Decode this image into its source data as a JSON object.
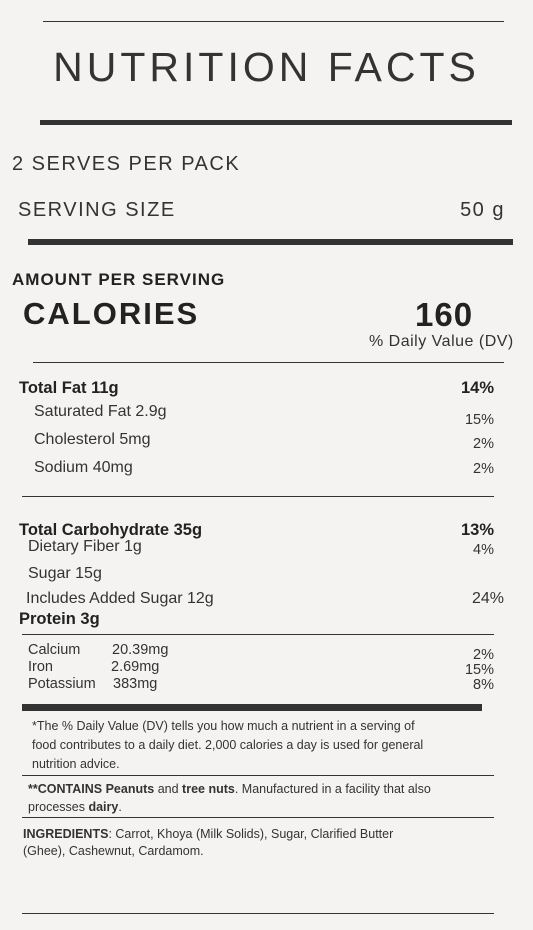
{
  "title": "NUTRITION FACTS",
  "serves_per_pack": "2 SERVES PER PACK",
  "serving_size": {
    "label": "SERVING SIZE",
    "value": "50 g"
  },
  "amount_per_serving": "AMOUNT PER SERVING",
  "calories": {
    "label": "CALORIES",
    "value": "160"
  },
  "dv_header": "% Daily Value (DV)",
  "fat": {
    "total": {
      "label": "Total Fat 11g",
      "dv": "14%"
    },
    "items": [
      {
        "label": "Saturated Fat 2.9g",
        "dv": "15%"
      },
      {
        "label": "Cholesterol 5mg",
        "dv": "2%"
      },
      {
        "label": "Sodium 40mg",
        "dv": "2%"
      }
    ]
  },
  "carbs": {
    "total": {
      "label": "Total Carbohydrate 35g",
      "dv": "13%"
    },
    "fiber": {
      "label": "Dietary Fiber 1g",
      "dv": "4%"
    },
    "sugar": {
      "label": "Sugar 15g"
    },
    "added_sugar": {
      "label": "Includes Added Sugar 12g",
      "dv": "24%"
    }
  },
  "protein": {
    "label": "Protein 3g"
  },
  "minerals": [
    {
      "name": "Calcium",
      "amount": "20.39mg",
      "dv": "2%"
    },
    {
      "name": "Iron",
      "amount": "2.69mg",
      "dv": "15%"
    },
    {
      "name": "Potassium",
      "amount": "383mg",
      "dv": "8%"
    }
  ],
  "footnote": {
    "line1": "*The % Daily Value (DV) tells you how much a nutrient in a serving of",
    "line2": "food contributes to a daily diet. 2,000 calories a day is used for general",
    "line3": "nutrition advice."
  },
  "allergen": {
    "prefix": "**CONTAINS",
    "peanuts": "Peanuts",
    "and": "and",
    "tree_nuts": "tree nuts",
    "rest": ". Manufactured in a facility that also",
    "line2_prefix": "processes",
    "dairy": "dairy",
    "period": "."
  },
  "ingredients": {
    "label": "INGREDIENTS",
    "line1": ": Carrot, Khoya (Milk Solids), Sugar, Clarified Butter",
    "line2": "(Ghee), Cashewnut, Cardamom."
  },
  "colors": {
    "background": "#f4f3f1",
    "text": "#2a2a2a",
    "rule": "#333333"
  }
}
